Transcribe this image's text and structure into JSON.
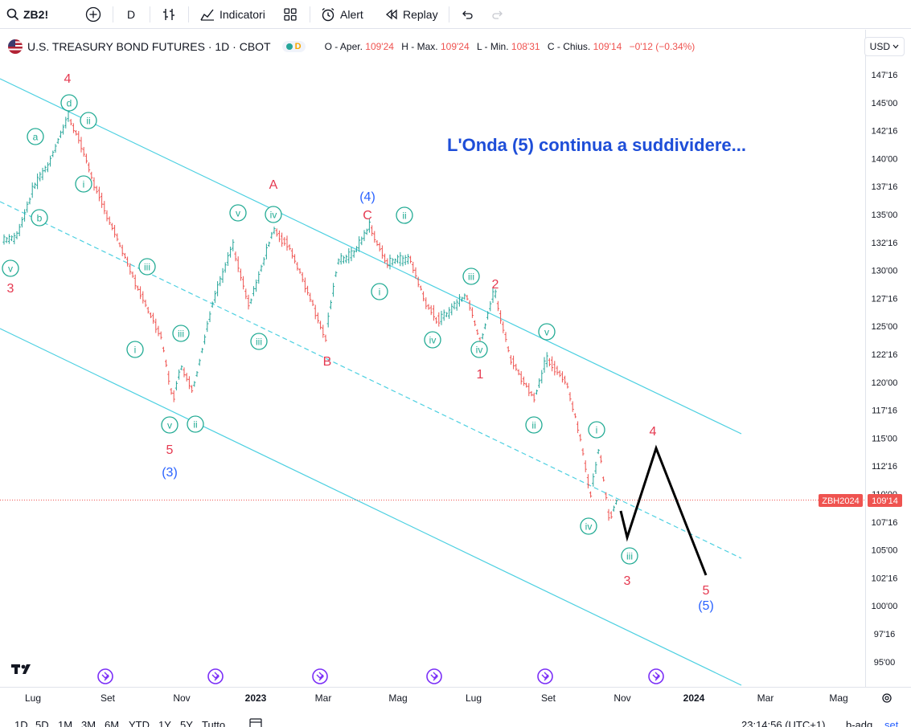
{
  "toolbar": {
    "symbol": "ZB2!",
    "interval": "D",
    "indicators_label": "Indicatori",
    "alert_label": "Alert",
    "replay_label": "Replay"
  },
  "legend": {
    "title": "U.S. TREASURY BOND FUTURES · 1D · CBOT",
    "delay_badge": "D",
    "open_label": "O - Aper.",
    "open": "109'24",
    "high_label": "H - Max.",
    "high": "109'24",
    "low_label": "L - Min.",
    "low": "108'31",
    "close_label": "C - Chius.",
    "close": "109'14",
    "change": "−0'12 (−0.34%)"
  },
  "currency": "USD",
  "price_axis": {
    "ticks": [
      "147'16",
      "145'00",
      "142'16",
      "140'00",
      "137'16",
      "135'00",
      "132'16",
      "130'00",
      "127'16",
      "125'00",
      "122'16",
      "120'00",
      "117'16",
      "115'00",
      "112'16",
      "110'00",
      "107'16",
      "105'00",
      "102'16",
      "100'00",
      "97'16",
      "95'00"
    ],
    "symbol_tag": "ZBH2024",
    "last_price": "109'14"
  },
  "time_axis": {
    "labels": [
      "Lug",
      "Set",
      "Nov",
      "2023",
      "Mar",
      "Mag",
      "Lug",
      "Set",
      "Nov",
      "2024",
      "Mar",
      "Mag"
    ]
  },
  "annotation": "L'Onda (5) continua a suddividere...",
  "waves": {
    "red": [
      "4",
      "3",
      "A",
      "C",
      "B",
      "5",
      "2",
      "1",
      "4",
      "3",
      "5"
    ],
    "blue": [
      "(4)",
      "(3)",
      "(5)"
    ],
    "green": [
      "a",
      "d",
      "ii",
      "i",
      "b",
      "v",
      "iv",
      "iii",
      "i",
      "iii",
      "v",
      "ii",
      "v",
      "iii",
      "ii",
      "i",
      "iv",
      "iii",
      "iv",
      "v",
      "ii",
      "i",
      "iv",
      "iii",
      "v"
    ]
  },
  "colors": {
    "up": "#26a69a",
    "down": "#ef5350",
    "channel": "#4dd0e1",
    "wave_red": "#e53950",
    "wave_blue": "#2962ff",
    "wave_green": "#22ab94",
    "annotation": "#1e4ed8"
  },
  "range_bar": {
    "items": [
      "1D",
      "5D",
      "1M",
      "3M",
      "6M",
      "YTD",
      "1Y",
      "5Y",
      "Tutto"
    ],
    "clock": "23:14:56 (UTC+1)",
    "adj": "b-adg",
    "set": "set"
  }
}
